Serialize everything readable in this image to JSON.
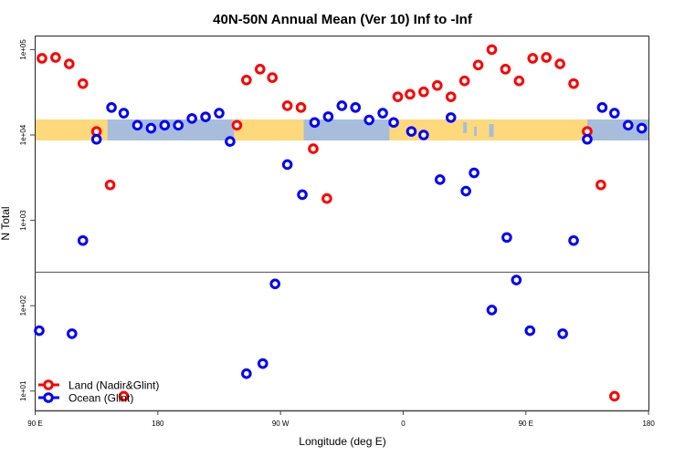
{
  "chart_data": {
    "type": "scatter",
    "title": "40N-50N Annual Mean (Ver 10)   Inf to -Inf",
    "xlabel": "Longitude (deg E)",
    "ylabel": "N Total",
    "yscale": "log",
    "ylim": [
      6,
      150000
    ],
    "xlim_unwrapped_deg": [
      90,
      450
    ],
    "x_ticks": [
      {
        "value": 90,
        "label": "90 E"
      },
      {
        "value": 180,
        "label": "180"
      },
      {
        "value": 270,
        "label": "90 W"
      },
      {
        "value": 360,
        "label": "0"
      },
      {
        "value": 450,
        "label": "90 E"
      },
      {
        "value": 540,
        "label": "180"
      }
    ],
    "y_ticks": [
      {
        "value": 100000,
        "label": "1e+05"
      },
      {
        "value": 10000,
        "label": "1e+04"
      },
      {
        "value": 1000,
        "label": "1e+03"
      },
      {
        "value": 100,
        "label": "1e+02"
      },
      {
        "value": 10,
        "label": "1e+01"
      }
    ],
    "legend_position": "bottom-left",
    "series": [
      {
        "name": "Land (Nadir&Glint)",
        "color": "#ff0000",
        "points": [
          [
            95,
            79000
          ],
          [
            105,
            81000
          ],
          [
            115,
            68000
          ],
          [
            125,
            40000
          ],
          [
            135,
            11000
          ],
          [
            145,
            2600
          ],
          [
            155,
            8.7
          ],
          [
            -122,
            13000
          ],
          [
            -115,
            44000
          ],
          [
            -105,
            59000
          ],
          [
            -96,
            47000
          ],
          [
            -85,
            22000
          ],
          [
            -75,
            21000
          ],
          [
            -66,
            6900
          ],
          [
            -56,
            1800
          ],
          [
            -4,
            28000
          ],
          [
            5,
            30000
          ],
          [
            15,
            32000
          ],
          [
            25,
            38000
          ],
          [
            35,
            28000
          ],
          [
            45,
            43000
          ],
          [
            55,
            66000
          ],
          [
            65,
            100000
          ],
          [
            75,
            59000
          ],
          [
            85,
            43000
          ]
        ]
      },
      {
        "name": "Ocean (Glint)",
        "color": "#0000ff",
        "points": [
          [
            93,
            51
          ],
          [
            117,
            47
          ],
          [
            125,
            580
          ],
          [
            135,
            8900
          ],
          [
            146,
            21000
          ],
          [
            155,
            18000
          ],
          [
            165,
            13000
          ],
          [
            175,
            12000
          ],
          [
            -175,
            13000
          ],
          [
            -165,
            13000
          ],
          [
            -155,
            15600
          ],
          [
            -145,
            16300
          ],
          [
            -135,
            18000
          ],
          [
            -127,
            8400
          ],
          [
            -115,
            16
          ],
          [
            -103,
            21
          ],
          [
            -94,
            180
          ],
          [
            -85,
            4500
          ],
          [
            -74,
            2000
          ],
          [
            -65,
            14000
          ],
          [
            -55,
            16400
          ],
          [
            -45,
            22000
          ],
          [
            -35,
            21000
          ],
          [
            -25,
            15000
          ],
          [
            -15,
            18000
          ],
          [
            -7,
            14000
          ],
          [
            6,
            11000
          ],
          [
            15,
            10000
          ],
          [
            27,
            3000
          ],
          [
            35,
            16000
          ],
          [
            46,
            2200
          ],
          [
            52,
            3600
          ],
          [
            65,
            89
          ],
          [
            76,
            630
          ],
          [
            83,
            200
          ]
        ]
      }
    ],
    "background_colors": {
      "land": "#fdd97c",
      "ocean": "#a7bddb"
    }
  }
}
